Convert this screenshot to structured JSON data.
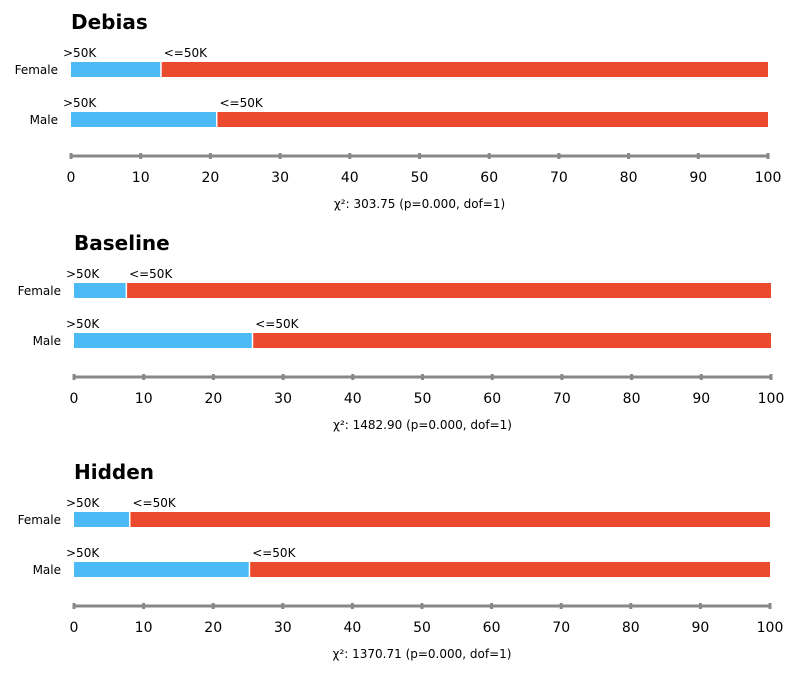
{
  "colors": {
    "gt50k": "#4cbbf5",
    "le50k": "#ec4a2e",
    "axis": "#888888"
  },
  "chart_data": [
    {
      "type": "bar",
      "orientation": "horizontal",
      "stacked": true,
      "title": "Debias",
      "categories": [
        "Female",
        "Male"
      ],
      "series": [
        {
          "name": ">50K",
          "values": [
            12.8,
            20.8
          ]
        },
        {
          "name": "<=50K",
          "values": [
            87.2,
            79.2
          ]
        }
      ],
      "xticks": [
        "0",
        "10",
        "20",
        "30",
        "40",
        "50",
        "60",
        "70",
        "80",
        "90",
        "100"
      ],
      "xlim": [
        0,
        100
      ],
      "stat": "χ²: 303.75 (p=0.000, dof=1)"
    },
    {
      "type": "bar",
      "orientation": "horizontal",
      "stacked": true,
      "title": "Baseline",
      "categories": [
        "Female",
        "Male"
      ],
      "series": [
        {
          "name": ">50K",
          "values": [
            7.4,
            25.5
          ]
        },
        {
          "name": "<=50K",
          "values": [
            92.6,
            74.5
          ]
        }
      ],
      "xticks": [
        "0",
        "10",
        "20",
        "30",
        "40",
        "50",
        "60",
        "70",
        "80",
        "90",
        "100"
      ],
      "xlim": [
        0,
        100
      ],
      "stat": "χ²: 1482.90 (p=0.000, dof=1)"
    },
    {
      "type": "bar",
      "orientation": "horizontal",
      "stacked": true,
      "title": "Hidden",
      "categories": [
        "Female",
        "Male"
      ],
      "series": [
        {
          "name": ">50K",
          "values": [
            7.9,
            25.1
          ]
        },
        {
          "name": "<=50K",
          "values": [
            92.1,
            74.9
          ]
        }
      ],
      "xticks": [
        "0",
        "10",
        "20",
        "30",
        "40",
        "50",
        "60",
        "70",
        "80",
        "90",
        "100"
      ],
      "xlim": [
        0,
        100
      ],
      "stat": "χ²: 1370.71 (p=0.000, dof=1)"
    }
  ]
}
